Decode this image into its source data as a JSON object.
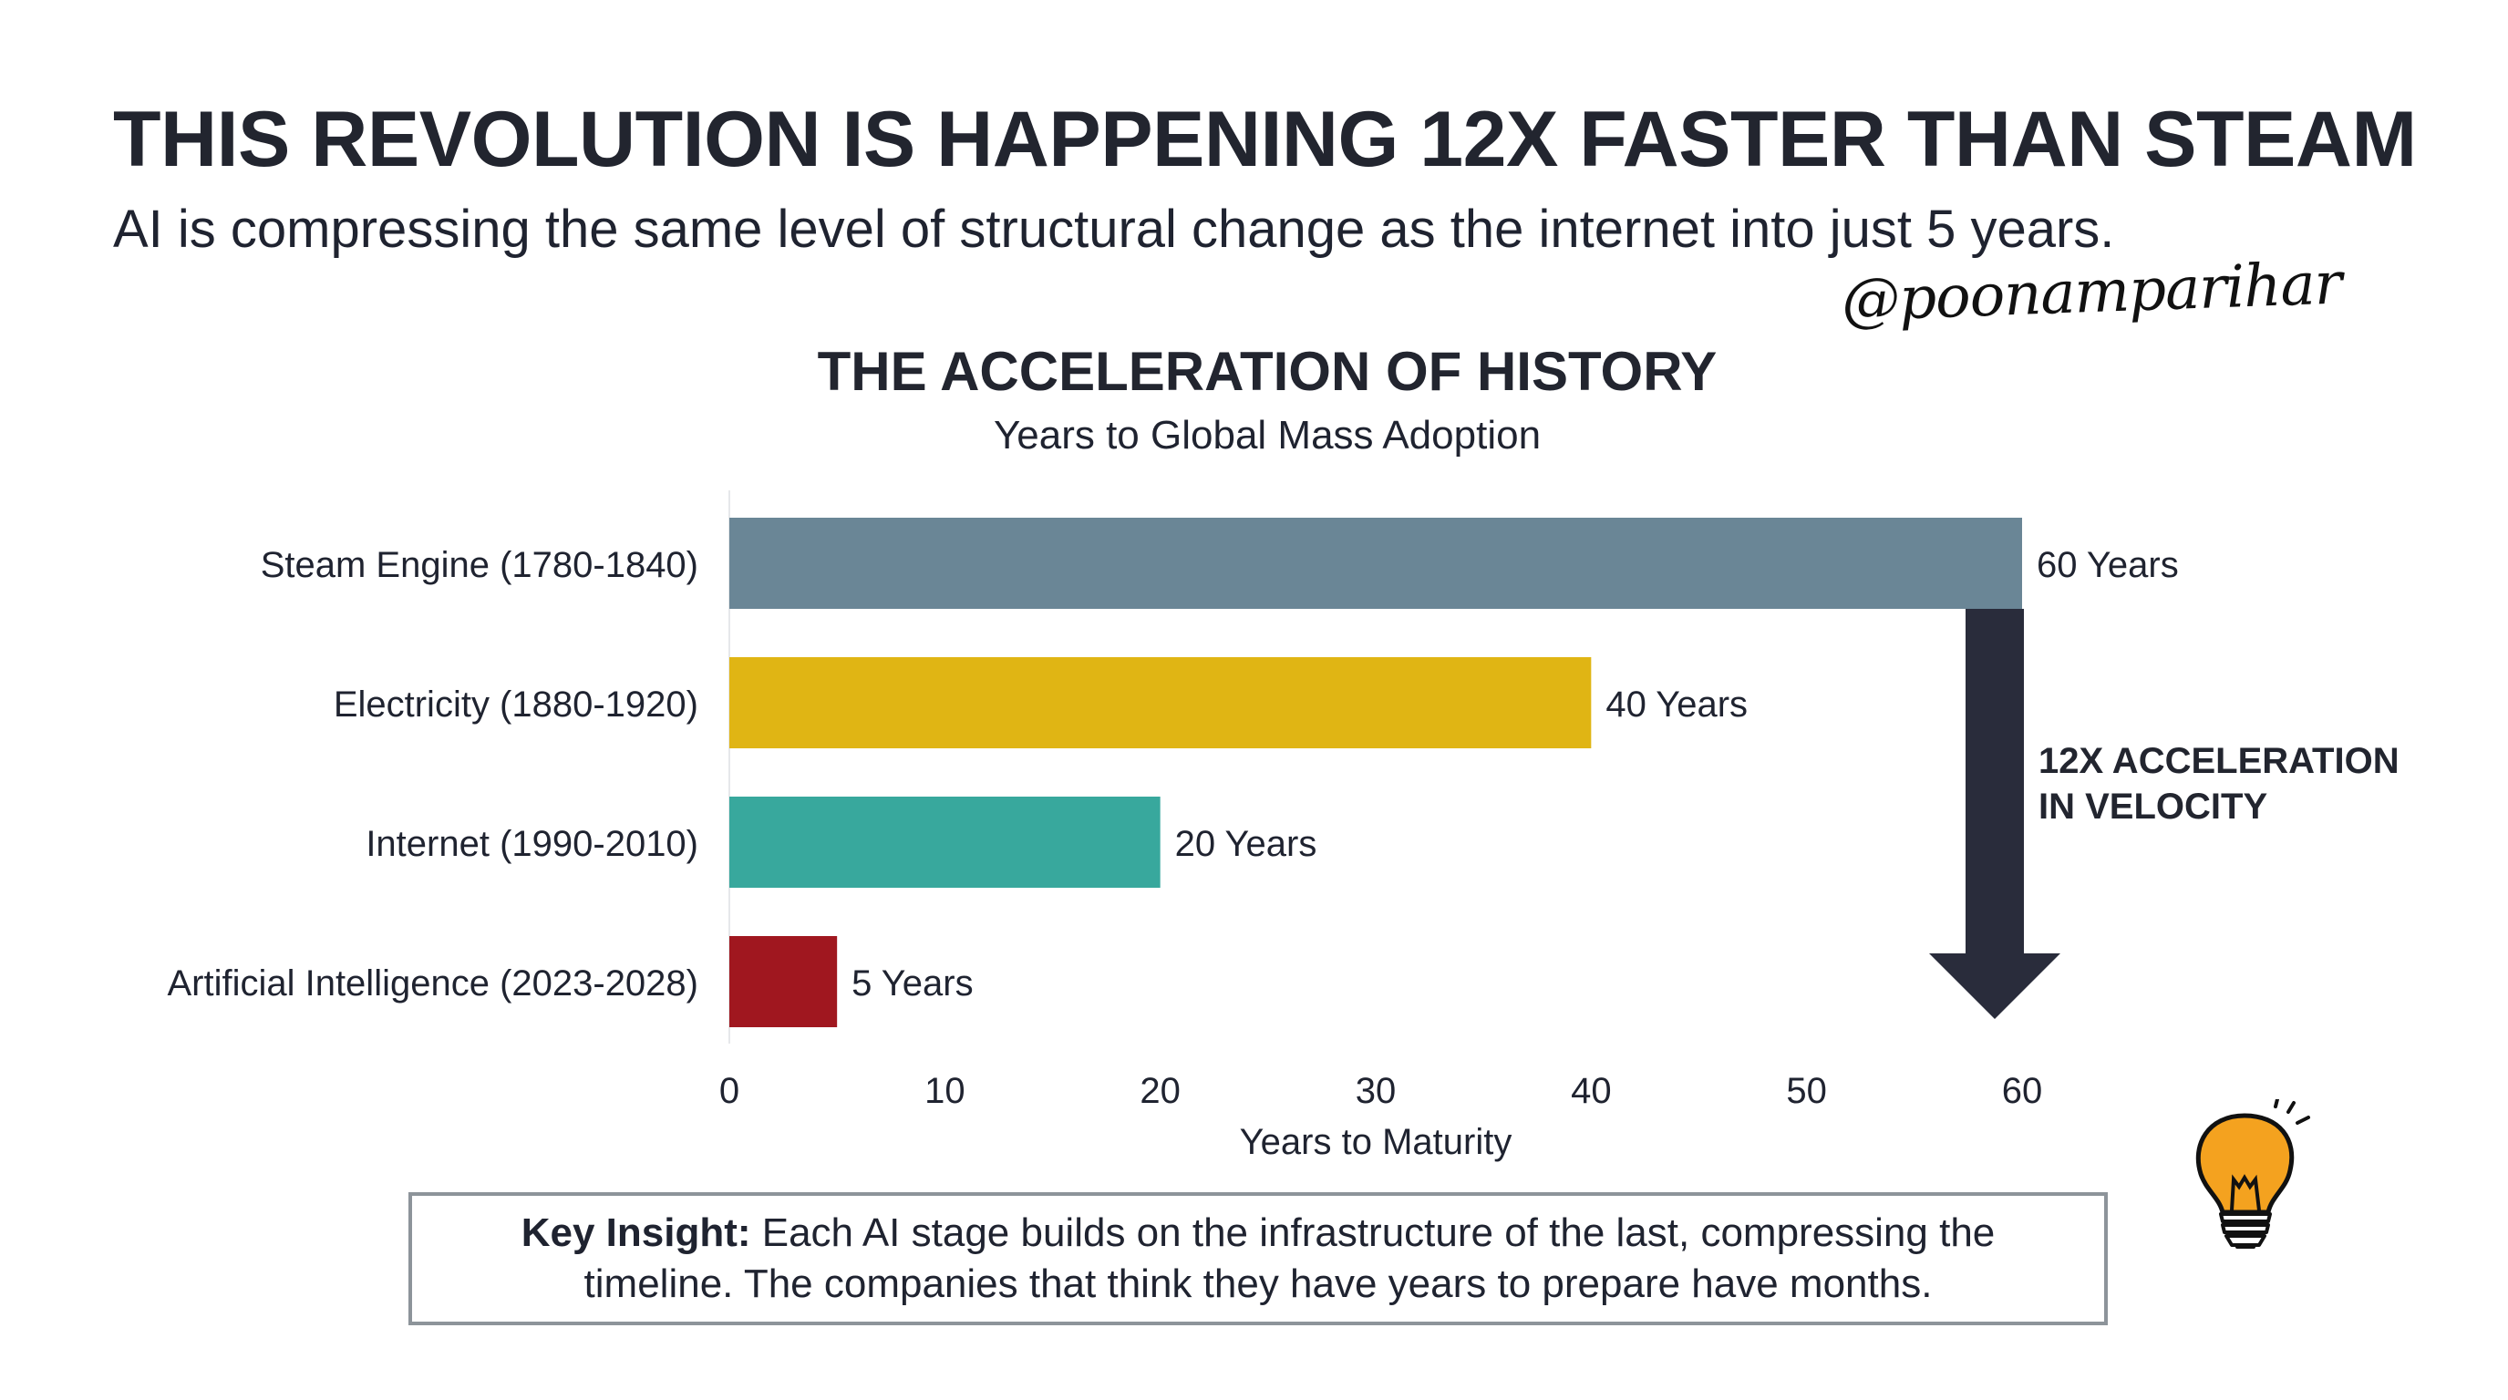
{
  "header": {
    "headline": "THIS REVOLUTION IS HAPPENING 12X FASTER THAN STEAM",
    "subheadline": "AI is compressing the same level of structural change as the internet into just 5 years.",
    "handle": "@poonamparihar"
  },
  "chart_data": {
    "type": "bar",
    "orientation": "horizontal",
    "title": "THE ACCELERATION OF HISTORY",
    "subtitle": "Years to Global Mass Adoption",
    "xlabel": "Years to Maturity",
    "ylabel": "",
    "xlim": [
      0,
      60
    ],
    "xticks": [
      0,
      10,
      20,
      30,
      40,
      50,
      60
    ],
    "categories": [
      "Steam Engine (1780-1840)",
      "Electricity (1880-1920)",
      "Internet (1990-2010)",
      "Artificial Intelligence (2023-2028)"
    ],
    "values": [
      60,
      40,
      20,
      5
    ],
    "value_labels": [
      "60 Years",
      "40 Years",
      "20 Years",
      "5 Years"
    ],
    "colors": [
      "#6a8696",
      "#e0b514",
      "#38a89d",
      "#a0171f"
    ],
    "annotation": {
      "lines": [
        "12X ACCELERATION",
        "IN VELOCITY"
      ],
      "arrow_color": "#292c3b"
    },
    "grid": false
  },
  "insight": {
    "label": "Key Insight:",
    "text": " Each AI stage builds on the infrastructure of the last, compressing the timeline. The companies that think they have years to prepare have months."
  }
}
